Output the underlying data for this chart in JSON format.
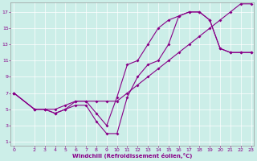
{
  "xlabel": "Windchill (Refroidissement éolien,°C)",
  "bg_color": "#cceee8",
  "line_color": "#880088",
  "grid_color": "#ffffff",
  "xlim": [
    -0.3,
    23.3
  ],
  "ylim": [
    0.5,
    18.2
  ],
  "xticks": [
    0,
    2,
    3,
    4,
    5,
    6,
    7,
    8,
    9,
    10,
    11,
    12,
    13,
    14,
    15,
    16,
    17,
    18,
    19,
    20,
    21,
    22,
    23
  ],
  "yticks": [
    1,
    3,
    5,
    7,
    9,
    11,
    13,
    15,
    17
  ],
  "curve1_x": [
    0,
    2,
    3,
    4,
    5,
    6,
    7,
    8,
    9,
    10,
    11,
    12,
    13,
    14,
    15,
    16,
    17,
    18,
    19,
    20,
    21,
    22,
    23
  ],
  "curve1_y": [
    7,
    5,
    5,
    4.5,
    5,
    6,
    6,
    4.5,
    3,
    6.5,
    10.5,
    11,
    13,
    15,
    16,
    16.5,
    17,
    17,
    16,
    12.5,
    12,
    12,
    12
  ],
  "curve2_x": [
    0,
    2,
    3,
    4,
    5,
    6,
    7,
    8,
    9,
    10,
    11,
    12,
    13,
    14,
    15,
    16,
    17,
    18,
    19,
    20,
    21,
    22,
    23
  ],
  "curve2_y": [
    7,
    5,
    5,
    5,
    5.5,
    6,
    6,
    6,
    6,
    6,
    7,
    8,
    9,
    10,
    11,
    12,
    13,
    14,
    15,
    16,
    17,
    18,
    18
  ],
  "curve3_x": [
    0,
    2,
    3,
    4,
    5,
    6,
    7,
    8,
    9,
    10,
    11,
    12,
    13,
    14,
    15,
    16,
    17,
    18,
    19,
    20,
    21,
    22,
    23
  ],
  "curve3_y": [
    7,
    5,
    5,
    4.5,
    5,
    5.5,
    5.5,
    3.5,
    2,
    2,
    6.5,
    9,
    10.5,
    11,
    13,
    16.5,
    17,
    17,
    16,
    12.5,
    12,
    12,
    12
  ]
}
